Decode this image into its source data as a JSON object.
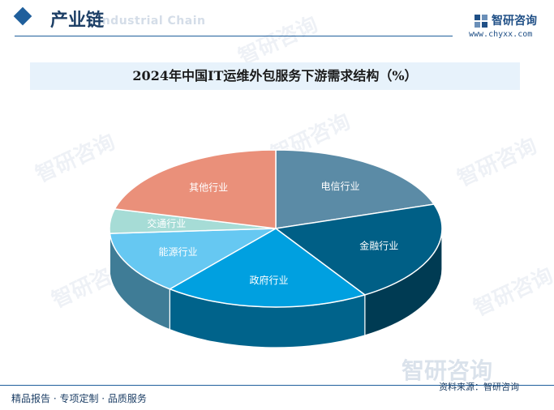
{
  "header": {
    "section_title": "产业链",
    "section_subtitle": "Industrial Chain",
    "brand_name": "智研咨询",
    "brand_url": "www.chyxx.com"
  },
  "watermark": {
    "text": "智研咨询",
    "big_text": "智研咨询"
  },
  "chart_data": {
    "type": "pie",
    "title": "2024年中国IT运维外包服务下游需求结构（%）",
    "categories": [
      "电信行业",
      "金融行业",
      "政府行业",
      "能源行业",
      "交通行业",
      "其他行业"
    ],
    "values": [
      20,
      21,
      20,
      13,
      5,
      21
    ],
    "colors": [
      "#5b8ba6",
      "#005f86",
      "#00a0e0",
      "#66c8f2",
      "#a6dcd6",
      "#ea907a"
    ],
    "style": "3d"
  },
  "footer": {
    "left_text": "精品报告 · 专项定制 · 品质服务",
    "source": "资料来源：智研咨询"
  }
}
